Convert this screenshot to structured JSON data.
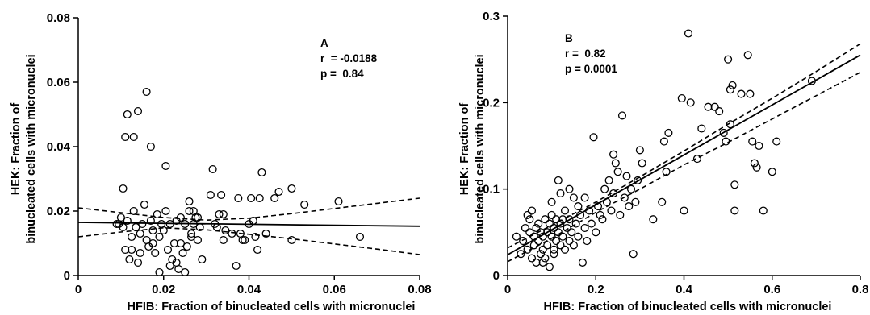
{
  "chart_data": [
    {
      "type": "scatter",
      "panel_label": "A",
      "stats": [
        "r  = -0.0188",
        "p =  0.84"
      ],
      "xlabel": "HFIB: Fraction of binucleated cells with micronuclei",
      "ylabel": [
        "HEK: Fraction of",
        "binucleated cells with micronuclei"
      ],
      "xlim": [
        0,
        0.08
      ],
      "ylim": [
        0,
        0.08
      ],
      "xticks": [
        0,
        0.02,
        0.04,
        0.06,
        0.08
      ],
      "xtick_labels": [
        "0",
        "0.02",
        "0.04",
        "0.06",
        "0.08"
      ],
      "yticks": [
        0,
        0.02,
        0.04,
        0.06,
        0.08
      ],
      "ytick_labels": [
        "0",
        "0.02",
        "0.04",
        "0.06",
        "0.08"
      ],
      "grid": false,
      "fit_line": {
        "x": [
          0,
          0.08
        ],
        "y": [
          0.0165,
          0.0153
        ]
      },
      "confidence_bands": [
        {
          "x": [
            0,
            0.01,
            0.02,
            0.03,
            0.04,
            0.05,
            0.06,
            0.07,
            0.08
          ],
          "y": [
            0.021,
            0.0195,
            0.018,
            0.0172,
            0.0178,
            0.0192,
            0.0208,
            0.0224,
            0.024
          ]
        },
        {
          "x": [
            0,
            0.01,
            0.02,
            0.03,
            0.04,
            0.05,
            0.06,
            0.07,
            0.08
          ],
          "y": [
            0.012,
            0.0135,
            0.0148,
            0.0142,
            0.0128,
            0.0114,
            0.0098,
            0.0082,
            0.0065
          ]
        }
      ],
      "points": [
        [
          0.0105,
          0.027
        ],
        [
          0.011,
          0.043
        ],
        [
          0.0115,
          0.05
        ],
        [
          0.013,
          0.043
        ],
        [
          0.014,
          0.051
        ],
        [
          0.016,
          0.057
        ],
        [
          0.017,
          0.04
        ],
        [
          0.0205,
          0.034
        ],
        [
          0.009,
          0.016
        ],
        [
          0.01,
          0.018
        ],
        [
          0.0105,
          0.015
        ],
        [
          0.011,
          0.008
        ],
        [
          0.012,
          0.005
        ],
        [
          0.0125,
          0.012
        ],
        [
          0.013,
          0.02
        ],
        [
          0.0135,
          0.015
        ],
        [
          0.014,
          0.004
        ],
        [
          0.0145,
          0.007
        ],
        [
          0.015,
          0.016
        ],
        [
          0.0155,
          0.022
        ],
        [
          0.016,
          0.011
        ],
        [
          0.0165,
          0.009
        ],
        [
          0.017,
          0.017
        ],
        [
          0.0175,
          0.014
        ],
        [
          0.018,
          0.007
        ],
        [
          0.0185,
          0.019
        ],
        [
          0.019,
          0.001
        ],
        [
          0.019,
          0.012
        ],
        [
          0.0195,
          0.016
        ],
        [
          0.02,
          0.014
        ],
        [
          0.0205,
          0.02
        ],
        [
          0.021,
          0.008
        ],
        [
          0.0215,
          0.016
        ],
        [
          0.022,
          0.005
        ],
        [
          0.0225,
          0.01
        ],
        [
          0.023,
          0.004
        ],
        [
          0.023,
          0.017
        ],
        [
          0.0235,
          0.002
        ],
        [
          0.024,
          0.018
        ],
        [
          0.0245,
          0.007
        ],
        [
          0.025,
          0.016
        ],
        [
          0.0255,
          0.009
        ],
        [
          0.026,
          0.02
        ],
        [
          0.0265,
          0.012
        ],
        [
          0.027,
          0.016
        ],
        [
          0.0275,
          0.018
        ],
        [
          0.028,
          0.011
        ],
        [
          0.0285,
          0.015
        ],
        [
          0.029,
          0.005
        ],
        [
          0.025,
          0.001
        ],
        [
          0.026,
          0.023
        ],
        [
          0.0265,
          0.013
        ],
        [
          0.027,
          0.02
        ],
        [
          0.031,
          0.025
        ],
        [
          0.0315,
          0.033
        ],
        [
          0.032,
          0.016
        ],
        [
          0.0325,
          0.015
        ],
        [
          0.033,
          0.019
        ],
        [
          0.0335,
          0.025
        ],
        [
          0.034,
          0.011
        ],
        [
          0.0345,
          0.014
        ],
        [
          0.037,
          0.003
        ],
        [
          0.0375,
          0.024
        ],
        [
          0.038,
          0.013
        ],
        [
          0.0385,
          0.011
        ],
        [
          0.039,
          0.011
        ],
        [
          0.04,
          0.016
        ],
        [
          0.0405,
          0.024
        ],
        [
          0.041,
          0.017
        ],
        [
          0.0415,
          0.012
        ],
        [
          0.042,
          0.008
        ],
        [
          0.0425,
          0.024
        ],
        [
          0.043,
          0.032
        ],
        [
          0.044,
          0.013
        ],
        [
          0.046,
          0.024
        ],
        [
          0.047,
          0.026
        ],
        [
          0.05,
          0.027
        ],
        [
          0.05,
          0.011
        ],
        [
          0.053,
          0.022
        ],
        [
          0.061,
          0.023
        ],
        [
          0.066,
          0.012
        ],
        [
          0.0095,
          0.016
        ],
        [
          0.0115,
          0.017
        ],
        [
          0.0125,
          0.008
        ],
        [
          0.0145,
          0.013
        ],
        [
          0.0175,
          0.01
        ],
        [
          0.0215,
          0.003
        ],
        [
          0.024,
          0.01
        ],
        [
          0.028,
          0.018
        ],
        [
          0.036,
          0.013
        ],
        [
          0.034,
          0.019
        ]
      ]
    },
    {
      "type": "scatter",
      "panel_label": "B",
      "stats": [
        "r =  0.82",
        "p = 0.0001"
      ],
      "xlabel": "HFIB: Fraction of binucleated cells with micronuclei",
      "ylabel": [
        "HEK: Fraction of",
        "binucleated cells with micronuclei"
      ],
      "xlim": [
        0,
        0.8
      ],
      "ylim": [
        0,
        0.3
      ],
      "xticks": [
        0,
        0.2,
        0.4,
        0.6,
        0.8
      ],
      "xtick_labels": [
        "0",
        "0.2",
        "0.4",
        "0.6",
        "0.8"
      ],
      "yticks": [
        0,
        0.1,
        0.2,
        0.3
      ],
      "ytick_labels": [
        "0",
        "0.1",
        "0.2",
        "0.3"
      ],
      "grid": false,
      "fit_line": {
        "x": [
          0,
          0.8
        ],
        "y": [
          0.024,
          0.255
        ]
      },
      "confidence_bands": [
        {
          "x": [
            0,
            0.1,
            0.2,
            0.3,
            0.4,
            0.5,
            0.6,
            0.7,
            0.8
          ],
          "y": [
            0.032,
            0.058,
            0.085,
            0.114,
            0.144,
            0.175,
            0.205,
            0.236,
            0.268
          ]
        },
        {
          "x": [
            0,
            0.1,
            0.2,
            0.3,
            0.4,
            0.5,
            0.6,
            0.7,
            0.8
          ],
          "y": [
            0.016,
            0.043,
            0.073,
            0.1,
            0.128,
            0.154,
            0.181,
            0.208,
            0.235
          ]
        }
      ],
      "points": [
        [
          0.02,
          0.045
        ],
        [
          0.03,
          0.025
        ],
        [
          0.035,
          0.04
        ],
        [
          0.04,
          0.055
        ],
        [
          0.045,
          0.03
        ],
        [
          0.05,
          0.05
        ],
        [
          0.05,
          0.065
        ],
        [
          0.055,
          0.02
        ],
        [
          0.055,
          0.075
        ],
        [
          0.06,
          0.035
        ],
        [
          0.06,
          0.045
        ],
        [
          0.065,
          0.055
        ],
        [
          0.065,
          0.015
        ],
        [
          0.07,
          0.04
        ],
        [
          0.07,
          0.06
        ],
        [
          0.075,
          0.025
        ],
        [
          0.075,
          0.05
        ],
        [
          0.08,
          0.03
        ],
        [
          0.08,
          0.045
        ],
        [
          0.085,
          0.065
        ],
        [
          0.085,
          0.02
        ],
        [
          0.09,
          0.05
        ],
        [
          0.09,
          0.035
        ],
        [
          0.095,
          0.06
        ],
        [
          0.095,
          0.01
        ],
        [
          0.1,
          0.045
        ],
        [
          0.1,
          0.07
        ],
        [
          0.105,
          0.03
        ],
        [
          0.105,
          0.055
        ],
        [
          0.11,
          0.04
        ],
        [
          0.11,
          0.065
        ],
        [
          0.115,
          0.05
        ],
        [
          0.115,
          0.11
        ],
        [
          0.12,
          0.035
        ],
        [
          0.12,
          0.06
        ],
        [
          0.125,
          0.045
        ],
        [
          0.13,
          0.075
        ],
        [
          0.13,
          0.03
        ],
        [
          0.135,
          0.055
        ],
        [
          0.14,
          0.065
        ],
        [
          0.14,
          0.04
        ],
        [
          0.145,
          0.05
        ],
        [
          0.15,
          0.09
        ],
        [
          0.15,
          0.035
        ],
        [
          0.155,
          0.06
        ],
        [
          0.16,
          0.045
        ],
        [
          0.165,
          0.07
        ],
        [
          0.17,
          0.015
        ],
        [
          0.175,
          0.055
        ],
        [
          0.18,
          0.04
        ],
        [
          0.185,
          0.075
        ],
        [
          0.19,
          0.06
        ],
        [
          0.195,
          0.16
        ],
        [
          0.2,
          0.05
        ],
        [
          0.205,
          0.08
        ],
        [
          0.21,
          0.07
        ],
        [
          0.215,
          0.065
        ],
        [
          0.22,
          0.1
        ],
        [
          0.225,
          0.085
        ],
        [
          0.23,
          0.11
        ],
        [
          0.235,
          0.075
        ],
        [
          0.24,
          0.095
        ],
        [
          0.245,
          0.13
        ],
        [
          0.25,
          0.12
        ],
        [
          0.255,
          0.07
        ],
        [
          0.26,
          0.185
        ],
        [
          0.265,
          0.09
        ],
        [
          0.27,
          0.115
        ],
        [
          0.275,
          0.08
        ],
        [
          0.28,
          0.1
        ],
        [
          0.285,
          0.025
        ],
        [
          0.29,
          0.085
        ],
        [
          0.295,
          0.11
        ],
        [
          0.3,
          0.145
        ],
        [
          0.305,
          0.13
        ],
        [
          0.33,
          0.065
        ],
        [
          0.35,
          0.085
        ],
        [
          0.355,
          0.155
        ],
        [
          0.36,
          0.12
        ],
        [
          0.365,
          0.165
        ],
        [
          0.395,
          0.205
        ],
        [
          0.4,
          0.075
        ],
        [
          0.41,
          0.28
        ],
        [
          0.415,
          0.2
        ],
        [
          0.43,
          0.135
        ],
        [
          0.44,
          0.17
        ],
        [
          0.455,
          0.195
        ],
        [
          0.47,
          0.195
        ],
        [
          0.48,
          0.19
        ],
        [
          0.49,
          0.165
        ],
        [
          0.495,
          0.155
        ],
        [
          0.5,
          0.25
        ],
        [
          0.505,
          0.215
        ],
        [
          0.505,
          0.175
        ],
        [
          0.51,
          0.22
        ],
        [
          0.515,
          0.105
        ],
        [
          0.515,
          0.075
        ],
        [
          0.53,
          0.21
        ],
        [
          0.545,
          0.255
        ],
        [
          0.55,
          0.21
        ],
        [
          0.555,
          0.155
        ],
        [
          0.56,
          0.13
        ],
        [
          0.565,
          0.125
        ],
        [
          0.57,
          0.15
        ],
        [
          0.58,
          0.075
        ],
        [
          0.6,
          0.12
        ],
        [
          0.61,
          0.155
        ],
        [
          0.69,
          0.225
        ],
        [
          0.045,
          0.07
        ],
        [
          0.1,
          0.085
        ],
        [
          0.12,
          0.095
        ],
        [
          0.14,
          0.1
        ],
        [
          0.08,
          0.015
        ],
        [
          0.105,
          0.025
        ],
        [
          0.125,
          0.065
        ],
        [
          0.16,
          0.08
        ],
        [
          0.24,
          0.14
        ],
        [
          0.175,
          0.09
        ]
      ]
    }
  ]
}
